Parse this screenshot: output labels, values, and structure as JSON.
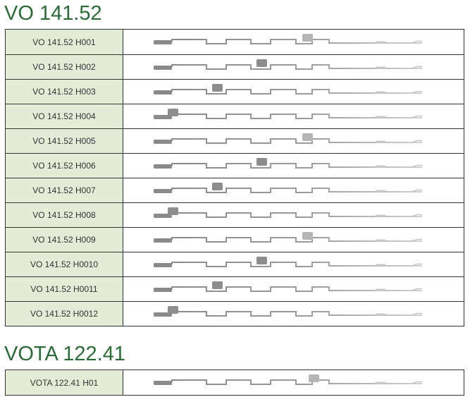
{
  "sections": [
    {
      "title": "VO 141.52",
      "rows": [
        "VO 141.52 H001",
        "VO 141.52 H002",
        "VO 141.52 H003",
        "VO 141.52 H004",
        "VO 141.52 H005",
        "VO 141.52 H006",
        "VO 141.52 H007",
        "VO 141.52 H008",
        "VO 141.52 H009",
        "VO 141.52 H0010",
        "VO 141.52 H0011",
        "VO 141.52 H0012"
      ]
    },
    {
      "title": "VOTA 122.41",
      "rows": [
        "VOTA 122.41 H01"
      ]
    }
  ]
}
